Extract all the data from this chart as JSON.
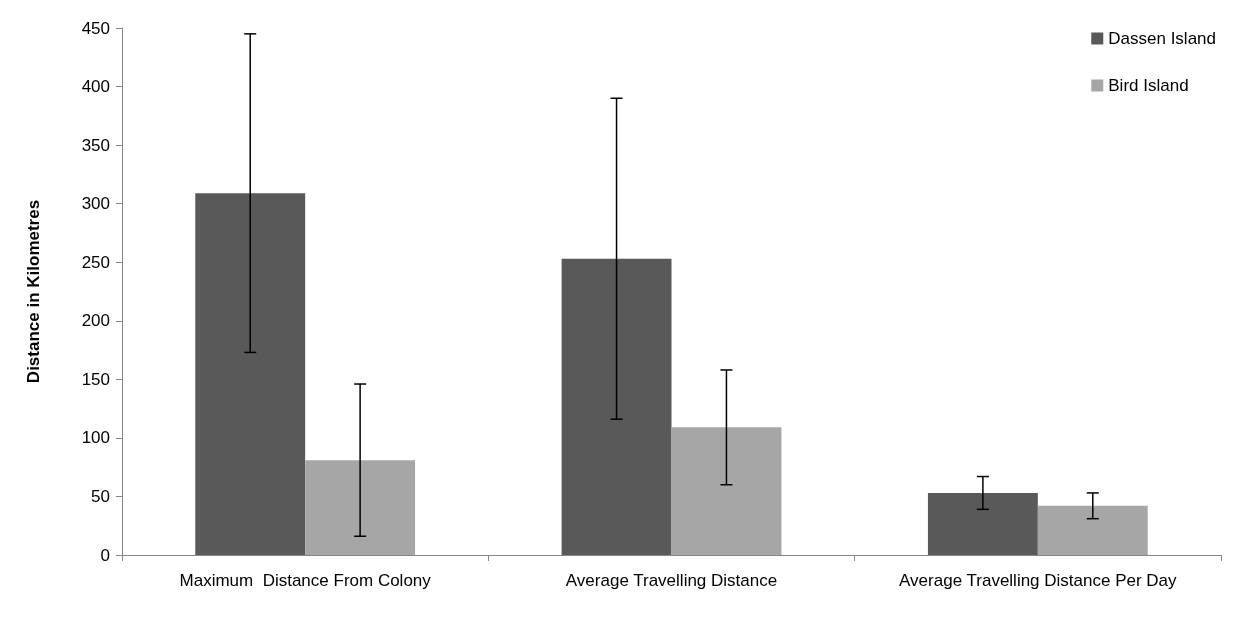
{
  "chart_data": {
    "type": "bar",
    "ylabel": "Distance in Kilometres",
    "categories": [
      "Maximum  Distance From Colony",
      "Average Travelling Distance",
      "Average Travelling Distance Per Day"
    ],
    "series": [
      {
        "name": "Dassen Island",
        "color": "#595959",
        "values": [
          309,
          253,
          53
        ],
        "errors": [
          136,
          137,
          14
        ]
      },
      {
        "name": "Bird Island",
        "color": "#a6a6a6",
        "values": [
          81,
          109,
          42
        ],
        "errors": [
          65,
          49,
          11
        ]
      }
    ],
    "ylim": [
      0,
      450
    ],
    "yticks": [
      0,
      50,
      100,
      150,
      200,
      250,
      300,
      350,
      400,
      450
    ],
    "grid": false,
    "legend": "top right"
  }
}
